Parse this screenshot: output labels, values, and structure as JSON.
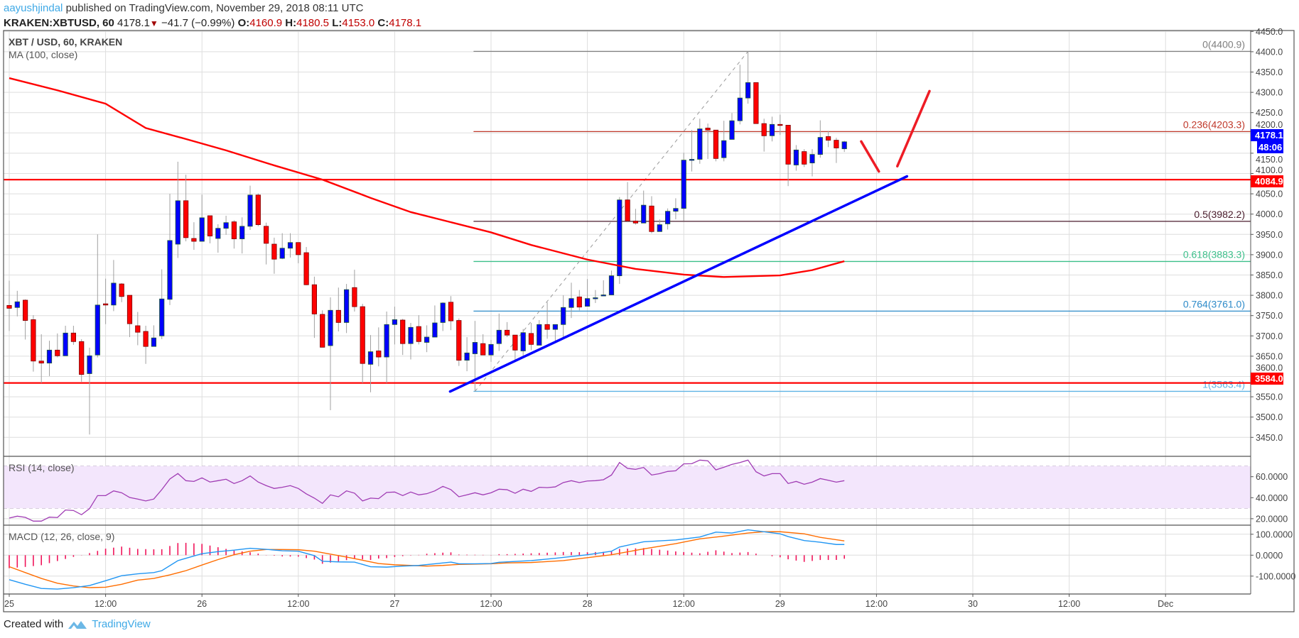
{
  "header": {
    "author": "aayushjindal",
    "published_text": "published on TradingView.com, November 29, 2018 08:11 UTC",
    "symbol": "KRAKEN:XBTUSD, 60",
    "last": "4178.1",
    "change_arrow": "▼",
    "change": "−41.7 (−0.99%)",
    "o_label": "O:",
    "o": "4160.9",
    "h_label": "H:",
    "h": "4180.5",
    "l_label": "L:",
    "l": "4153.0",
    "c_label": "C:",
    "c": "4178.1"
  },
  "legend": {
    "title": "XBT / USD, 60, KRAKEN",
    "ma": "MA (100, close)",
    "rsi": "RSI (14, close)",
    "macd": "MACD (12, 26, close, 9)"
  },
  "colors": {
    "bull": "#0000ff",
    "bear": "#ff0000",
    "ma": "#ff0000",
    "trendline": "#0000ff",
    "rsi": "#a03cb4",
    "rsi_band": "#f3e6fc",
    "macd": "#2196f3",
    "signal": "#ff6d00",
    "hist": "#f0145a"
  },
  "price_axis": {
    "ticks": [
      "4450.0",
      "4400.0",
      "4350.0",
      "4300.0",
      "4250.0",
      "4200.0",
      "4150.0",
      "4100.0",
      "4050.0",
      "4000.0",
      "3950.0",
      "3900.0",
      "3850.0",
      "3800.0",
      "3750.0",
      "3700.0",
      "3650.0",
      "3600.0",
      "3550.0",
      "3500.0",
      "3450.0"
    ],
    "tags": {
      "last": "4178.1",
      "countdown": "48:06",
      "resistance": "4084.9",
      "support": "3584.0"
    }
  },
  "rsi_axis": [
    "60.0000",
    "40.0000",
    "20.0000"
  ],
  "macd_axis": [
    "100.0000",
    "0.0000",
    "-100.0000"
  ],
  "time_axis": {
    "ticks": [
      {
        "label": "25",
        "hour": 0
      },
      {
        "label": "12:00",
        "hour": 12
      },
      {
        "label": "26",
        "hour": 24
      },
      {
        "label": "12:00",
        "hour": 36
      },
      {
        "label": "27",
        "hour": 48
      },
      {
        "label": "12:00",
        "hour": 60
      },
      {
        "label": "28",
        "hour": 72
      },
      {
        "label": "12:00",
        "hour": 84
      },
      {
        "label": "29",
        "hour": 96
      },
      {
        "label": "12:00",
        "hour": 108
      },
      {
        "label": "30",
        "hour": 120
      },
      {
        "label": "12:00",
        "hour": 132
      },
      {
        "label": "Dec",
        "hour": 144
      }
    ]
  },
  "chart_data": {
    "type": "candlestick",
    "interval": "60",
    "ylim": [
      3420,
      4452
    ],
    "candles_ohlc": [
      [
        3775,
        3836,
        3712,
        3768
      ],
      [
        3770,
        3811,
        3748,
        3784
      ],
      [
        3788,
        3790,
        3691,
        3738
      ],
      [
        3740,
        3751,
        3612,
        3638
      ],
      [
        3638,
        3704,
        3584,
        3633
      ],
      [
        3633,
        3688,
        3601,
        3665
      ],
      [
        3665,
        3706,
        3647,
        3651
      ],
      [
        3651,
        3725,
        3651,
        3707
      ],
      [
        3707,
        3725,
        3678,
        3686
      ],
      [
        3686,
        3692,
        3587,
        3605
      ],
      [
        3607,
        3671,
        3457,
        3651
      ],
      [
        3653,
        3950,
        3647,
        3776
      ],
      [
        3779,
        3841,
        3729,
        3776
      ],
      [
        3776,
        3887,
        3761,
        3830
      ],
      [
        3828,
        3830,
        3783,
        3797
      ],
      [
        3800,
        3800,
        3697,
        3730
      ],
      [
        3725,
        3759,
        3677,
        3709
      ],
      [
        3711,
        3725,
        3631,
        3674
      ],
      [
        3674,
        3726,
        3674,
        3695
      ],
      [
        3700,
        3864,
        3692,
        3791
      ],
      [
        3790,
        4050,
        3776,
        3935
      ],
      [
        3926,
        4129,
        3892,
        4033
      ],
      [
        4033,
        4097,
        3933,
        3942
      ],
      [
        3940,
        3980,
        3912,
        3933
      ],
      [
        3933,
        4048,
        3933,
        3991
      ],
      [
        3996,
        3996,
        3928,
        3946
      ],
      [
        3940,
        3975,
        3905,
        3965
      ],
      [
        3965,
        3996,
        3949,
        3979
      ],
      [
        3981,
        3985,
        3915,
        3939
      ],
      [
        3939,
        3992,
        3903,
        3970
      ],
      [
        3970,
        4070,
        3961,
        4047
      ],
      [
        4047,
        4051,
        3970,
        3974
      ],
      [
        3970,
        3979,
        3876,
        3928
      ],
      [
        3926,
        3942,
        3853,
        3889
      ],
      [
        3891,
        3953,
        3889,
        3916
      ],
      [
        3916,
        3953,
        3893,
        3930
      ],
      [
        3930,
        3930,
        3879,
        3900
      ],
      [
        3905,
        3919,
        3825,
        3826
      ],
      [
        3826,
        3846,
        3695,
        3754
      ],
      [
        3753,
        3763,
        3672,
        3672
      ],
      [
        3676,
        3795,
        3517,
        3763
      ],
      [
        3763,
        3819,
        3711,
        3733
      ],
      [
        3733,
        3828,
        3707,
        3814
      ],
      [
        3819,
        3863,
        3760,
        3772
      ],
      [
        3772,
        3779,
        3584,
        3632
      ],
      [
        3630,
        3702,
        3561,
        3661
      ],
      [
        3663,
        3721,
        3625,
        3648
      ],
      [
        3648,
        3760,
        3584,
        3728
      ],
      [
        3728,
        3772,
        3679,
        3740
      ],
      [
        3739,
        3742,
        3653,
        3681
      ],
      [
        3681,
        3732,
        3642,
        3721
      ],
      [
        3723,
        3751,
        3679,
        3686
      ],
      [
        3684,
        3726,
        3660,
        3697
      ],
      [
        3697,
        3775,
        3697,
        3732
      ],
      [
        3733,
        3783,
        3712,
        3781
      ],
      [
        3783,
        3798,
        3714,
        3737
      ],
      [
        3738,
        3743,
        3626,
        3640
      ],
      [
        3640,
        3697,
        3613,
        3658
      ],
      [
        3656,
        3737,
        3563.4,
        3684
      ],
      [
        3681,
        3704,
        3653,
        3653
      ],
      [
        3653,
        3690,
        3636,
        3679
      ],
      [
        3681,
        3755,
        3663,
        3714
      ],
      [
        3714,
        3734,
        3697,
        3702
      ],
      [
        3702,
        3702,
        3640,
        3665
      ],
      [
        3663,
        3717,
        3647,
        3708
      ],
      [
        3706,
        3732,
        3665,
        3679
      ],
      [
        3677,
        3739,
        3677,
        3728
      ],
      [
        3728,
        3783,
        3693,
        3716
      ],
      [
        3716,
        3728,
        3688,
        3728
      ],
      [
        3728,
        3800,
        3697,
        3770
      ],
      [
        3770,
        3831,
        3744,
        3792
      ],
      [
        3796,
        3813,
        3763,
        3771
      ],
      [
        3773,
        3840,
        3773,
        3792
      ],
      [
        3792,
        3813,
        3781,
        3794
      ],
      [
        3800,
        3837,
        3800,
        3801
      ],
      [
        3801,
        3861,
        3801,
        3848
      ],
      [
        3848,
        4042,
        3828,
        4035
      ],
      [
        4035,
        4079,
        3980,
        3983
      ],
      [
        3983,
        4013,
        3974,
        3978
      ],
      [
        3978,
        4058,
        3978,
        4022
      ],
      [
        4020,
        4044,
        3953,
        3957
      ],
      [
        3957,
        3987,
        3957,
        3974
      ],
      [
        3976,
        4014,
        3962,
        4007
      ],
      [
        4007,
        4039,
        3987,
        4014
      ],
      [
        4014,
        4151,
        3983,
        4133
      ],
      [
        4133,
        4207,
        4105,
        4135
      ],
      [
        4135,
        4235,
        4124,
        4210
      ],
      [
        4212,
        4223,
        4136,
        4207
      ],
      [
        4207,
        4207,
        4130,
        4137
      ],
      [
        4139,
        4230,
        4130,
        4181
      ],
      [
        4184,
        4249,
        4184,
        4230
      ],
      [
        4230,
        4368,
        4221,
        4286
      ],
      [
        4286,
        4400.9,
        4272,
        4324
      ],
      [
        4324,
        4324,
        4223,
        4223
      ],
      [
        4223,
        4235,
        4154,
        4193
      ],
      [
        4193,
        4240,
        4179,
        4221
      ],
      [
        4221,
        4245,
        4195,
        4219
      ],
      [
        4219,
        4219,
        4069,
        4123
      ],
      [
        4121,
        4170,
        4107,
        4158
      ],
      [
        4154,
        4160,
        4116,
        4123
      ],
      [
        4126,
        4160,
        4093,
        4147
      ],
      [
        4147,
        4231,
        4139,
        4189
      ],
      [
        4191,
        4205,
        4165,
        4182
      ],
      [
        4182,
        4188,
        4126,
        4163
      ],
      [
        4160.9,
        4180.5,
        4153.0,
        4178.1
      ]
    ],
    "ma100": [
      [
        0,
        4335
      ],
      [
        6,
        4305
      ],
      [
        12,
        4272
      ],
      [
        17,
        4212
      ],
      [
        22,
        4185
      ],
      [
        27,
        4157
      ],
      [
        33,
        4120
      ],
      [
        39,
        4085
      ],
      [
        45,
        4040
      ],
      [
        50,
        4005
      ],
      [
        55,
        3980
      ],
      [
        60,
        3955
      ],
      [
        65,
        3924
      ],
      [
        72,
        3888
      ],
      [
        78,
        3865
      ],
      [
        84,
        3851
      ],
      [
        89,
        3845
      ],
      [
        96,
        3849
      ],
      [
        100,
        3862
      ],
      [
        104,
        3884
      ]
    ],
    "horizontal_levels": [
      4084.9,
      3584.0
    ],
    "fib": {
      "start_hour": 58,
      "end_hour": 92,
      "levels": [
        {
          "label": "0(4400.9)",
          "price": 4400.9,
          "color": "#808080"
        },
        {
          "label": "0.236(4203.3)",
          "price": 4203.3,
          "color": "#c0392b"
        },
        {
          "label": "0.5(3982.2)",
          "price": 3982.2,
          "color": "#4a1c2c"
        },
        {
          "label": "0.618(3883.3)",
          "price": 3883.3,
          "color": "#3cbf8a"
        },
        {
          "label": "0.764(3761.0)",
          "price": 3761.0,
          "color": "#2e8bc9"
        },
        {
          "label": "1(3563.4)",
          "price": 3563.4,
          "color": "#5eb3e4"
        }
      ]
    },
    "trendline": [
      [
        54.9,
        3563
      ],
      [
        111.8,
        4093
      ]
    ],
    "arrows": [
      [
        [
          106.1,
          4179
        ],
        [
          108.3,
          4105
        ]
      ],
      [
        [
          110.6,
          4118
        ],
        [
          114.6,
          4303
        ]
      ]
    ],
    "rsi": [
      20.6,
      22.4,
      21.3,
      17.7,
      17.7,
      21.5,
      21.1,
      28.3,
      27.8,
      23.8,
      29.6,
      42.0,
      42.0,
      46.5,
      44.7,
      40.2,
      38.7,
      36.9,
      38.7,
      47.7,
      57.8,
      63.0,
      56.2,
      55.5,
      58.9,
      54.9,
      56.2,
      57.6,
      53.5,
      56.2,
      60.7,
      54.9,
      51.5,
      48.8,
      49.9,
      51.5,
      48.8,
      43.6,
      39.6,
      34.6,
      42.7,
      40.9,
      46.5,
      44.3,
      36.9,
      39.6,
      39.1,
      45.0,
      45.4,
      42.0,
      45.4,
      42.7,
      43.8,
      46.5,
      50.8,
      47.7,
      40.9,
      42.7,
      44.7,
      42.7,
      44.7,
      48.1,
      47.6,
      44.2,
      48.1,
      46.0,
      49.9,
      49.6,
      50.3,
      54.4,
      56.2,
      54.4,
      55.9,
      56.2,
      57.1,
      61.6,
      73.5,
      67.9,
      67.0,
      68.8,
      61.6,
      62.9,
      65.0,
      65.6,
      72.2,
      72.4,
      75.8,
      75.1,
      66.5,
      69.0,
      71.7,
      73.5,
      75.8,
      64.7,
      60.7,
      62.9,
      62.9,
      53.5,
      55.5,
      52.8,
      54.8,
      58.2,
      56.6,
      54.8,
      56.2
    ],
    "rsi_bands": [
      70,
      30
    ],
    "macd": [
      [
        0,
        -117
      ],
      [
        2,
        -139
      ],
      [
        4,
        -159
      ],
      [
        6,
        -162
      ],
      [
        8,
        -155
      ],
      [
        10,
        -145
      ],
      [
        12,
        -122
      ],
      [
        14,
        -98
      ],
      [
        16,
        -89
      ],
      [
        18,
        -83
      ],
      [
        19,
        -74
      ],
      [
        21,
        -26
      ],
      [
        23,
        -4
      ],
      [
        24,
        7
      ],
      [
        26,
        17
      ],
      [
        28,
        24
      ],
      [
        30,
        33
      ],
      [
        32,
        28
      ],
      [
        34,
        21
      ],
      [
        36,
        19
      ],
      [
        38,
        -2
      ],
      [
        39,
        -29
      ],
      [
        41,
        -32
      ],
      [
        43,
        -33
      ],
      [
        45,
        -55
      ],
      [
        47,
        -57
      ],
      [
        49,
        -52
      ],
      [
        51,
        -49
      ],
      [
        53,
        -41
      ],
      [
        55,
        -33
      ],
      [
        56,
        -41
      ],
      [
        58,
        -41
      ],
      [
        60,
        -40
      ],
      [
        61,
        -34
      ],
      [
        65,
        -26
      ],
      [
        68,
        -15
      ],
      [
        72,
        2
      ],
      [
        75,
        19
      ],
      [
        76,
        39
      ],
      [
        79,
        64
      ],
      [
        83,
        73
      ],
      [
        86,
        87
      ],
      [
        88,
        110
      ],
      [
        90,
        106
      ],
      [
        92,
        121
      ],
      [
        94,
        112
      ],
      [
        96,
        102
      ],
      [
        97,
        89
      ],
      [
        99,
        70
      ],
      [
        101,
        62
      ],
      [
        103,
        51
      ],
      [
        104,
        51
      ]
    ],
    "signal": [
      [
        0,
        -55
      ],
      [
        2,
        -83
      ],
      [
        4,
        -111
      ],
      [
        6,
        -134
      ],
      [
        8,
        -147
      ],
      [
        10,
        -155
      ],
      [
        12,
        -153
      ],
      [
        14,
        -139
      ],
      [
        16,
        -119
      ],
      [
        18,
        -111
      ],
      [
        20,
        -94
      ],
      [
        22,
        -74
      ],
      [
        24,
        -47
      ],
      [
        26,
        -21
      ],
      [
        28,
        2
      ],
      [
        30,
        19
      ],
      [
        32,
        27
      ],
      [
        34,
        27
      ],
      [
        36,
        26
      ],
      [
        38,
        19
      ],
      [
        40,
        5
      ],
      [
        42,
        -9
      ],
      [
        44,
        -24
      ],
      [
        46,
        -40
      ],
      [
        48,
        -46
      ],
      [
        50,
        -49
      ],
      [
        52,
        -52
      ],
      [
        54,
        -49
      ],
      [
        56,
        -44
      ],
      [
        58,
        -43
      ],
      [
        60,
        -41
      ],
      [
        62,
        -37
      ],
      [
        65,
        -35
      ],
      [
        69,
        -26
      ],
      [
        72,
        -12
      ],
      [
        75,
        2
      ],
      [
        79,
        30
      ],
      [
        83,
        55
      ],
      [
        86,
        78
      ],
      [
        89,
        91
      ],
      [
        92,
        106
      ],
      [
        94,
        112
      ],
      [
        96,
        112
      ],
      [
        99,
        102
      ],
      [
        101,
        85
      ],
      [
        104,
        68
      ]
    ]
  },
  "footer": {
    "created_with": "Created with",
    "brand": "TradingView"
  }
}
